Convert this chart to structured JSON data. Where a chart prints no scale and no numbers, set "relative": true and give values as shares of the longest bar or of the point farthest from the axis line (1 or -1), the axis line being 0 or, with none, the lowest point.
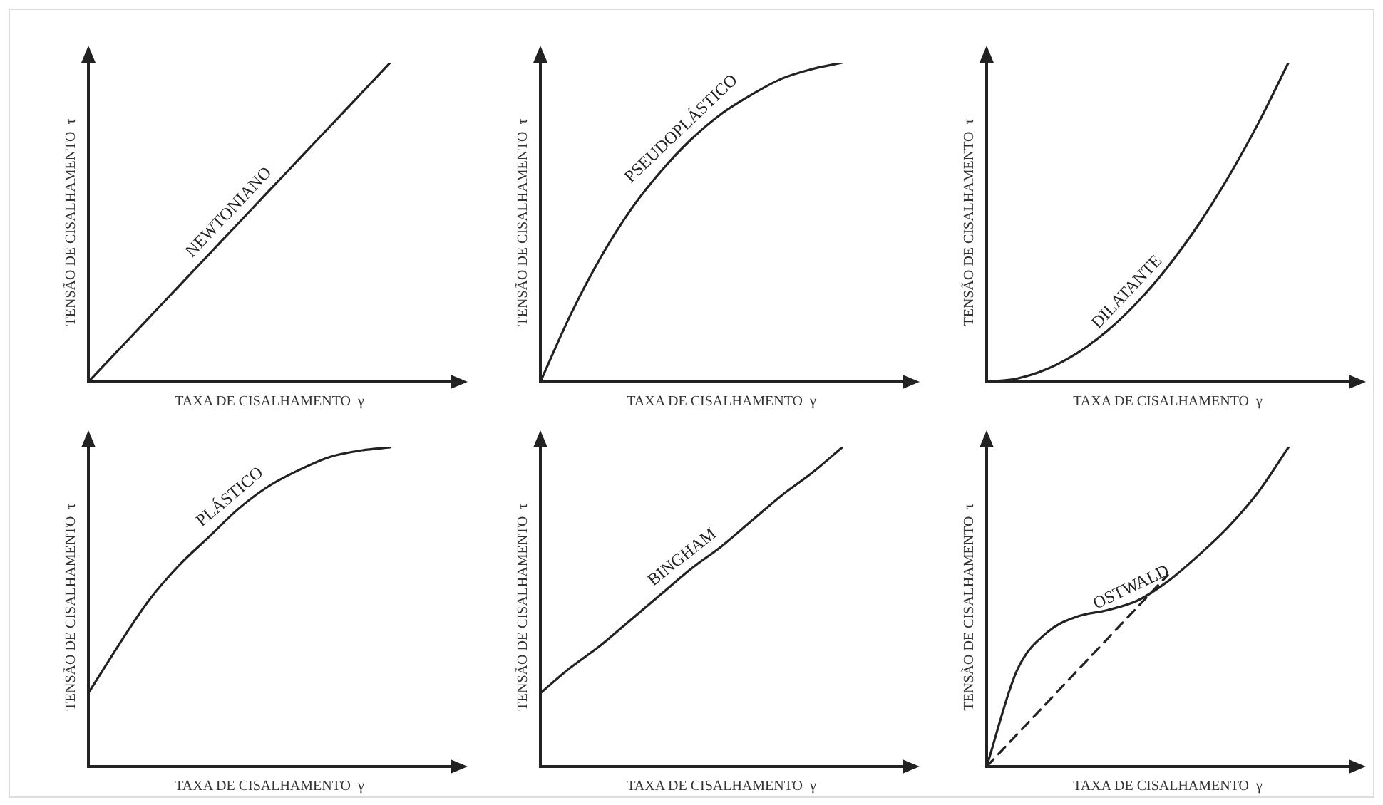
{
  "chart_data": [
    {
      "type": "line",
      "relative": true,
      "xlabel": "TAXA DE CISALHAMENTO  γ",
      "ylabel": "TENSÃO DE CISALHAMENTO  τ",
      "categories": [
        null,
        null,
        null,
        null,
        null,
        null,
        null,
        null,
        null,
        null,
        null,
        null,
        null
      ],
      "grid": false,
      "legend": false,
      "marker": "none",
      "series": [
        {
          "name": "NEWTONIANO",
          "color": "#222222",
          "line_style": "solid",
          "values": [
            0,
            0.1,
            0.2,
            0.3,
            0.4,
            0.5,
            0.6,
            0.7,
            0.8,
            0.9,
            1,
            null,
            null
          ]
        }
      ]
    },
    {
      "type": "line",
      "relative": true,
      "xlabel": "TAXA DE CISALHAMENTO  γ",
      "ylabel": "TENSÃO DE CISALHAMENTO  τ",
      "categories": [
        null,
        null,
        null,
        null,
        null,
        null,
        null,
        null,
        null,
        null,
        null,
        null,
        null
      ],
      "grid": false,
      "legend": false,
      "marker": "none",
      "series": [
        {
          "name": "PSEUDOPLÁSTICO",
          "color": "#222222",
          "line_style": "solid",
          "values": [
            0,
            0.21,
            0.39,
            0.54,
            0.66,
            0.76,
            0.84,
            0.9,
            0.95,
            0.98,
            1,
            null,
            null
          ]
        }
      ]
    },
    {
      "type": "line",
      "relative": true,
      "xlabel": "TAXA DE CISALHAMENTO  γ",
      "ylabel": "TENSÃO DE CISALHAMENTO  τ",
      "categories": [
        null,
        null,
        null,
        null,
        null,
        null,
        null,
        null,
        null,
        null,
        null,
        null,
        null
      ],
      "grid": false,
      "legend": false,
      "marker": "none",
      "series": [
        {
          "name": "DILATANTE",
          "color": "#222222",
          "line_style": "solid",
          "values": [
            0,
            0.01,
            0.04,
            0.09,
            0.16,
            0.25,
            0.36,
            0.49,
            0.64,
            0.81,
            1,
            null,
            null
          ]
        }
      ]
    },
    {
      "type": "line",
      "relative": true,
      "xlabel": "TAXA DE CISALHAMENTO  γ",
      "ylabel": "TENSÃO DE CISALHAMENTO  τ",
      "categories": [
        null,
        null,
        null,
        null,
        null,
        null,
        null,
        null,
        null,
        null,
        null,
        null,
        null
      ],
      "grid": false,
      "legend": false,
      "marker": "none",
      "series": [
        {
          "name": "PLÁSTICO",
          "color": "#222222",
          "line_style": "solid",
          "values": [
            0.23,
            0.38,
            0.52,
            0.63,
            0.72,
            0.81,
            0.88,
            0.93,
            0.97,
            0.99,
            1,
            null,
            null
          ]
        }
      ]
    },
    {
      "type": "line",
      "relative": true,
      "xlabel": "TAXA DE CISALHAMENTO  γ",
      "ylabel": "TENSÃO DE CISALHAMENTO  τ",
      "categories": [
        null,
        null,
        null,
        null,
        null,
        null,
        null,
        null,
        null,
        null,
        null,
        null,
        null
      ],
      "grid": false,
      "legend": false,
      "marker": "none",
      "series": [
        {
          "name": "BINGHAM",
          "color": "#222222",
          "line_style": "solid",
          "values": [
            0.23,
            0.31,
            0.38,
            0.46,
            0.54,
            0.62,
            0.69,
            0.77,
            0.85,
            0.92,
            1,
            null,
            null
          ]
        }
      ]
    },
    {
      "type": "line",
      "relative": true,
      "xlabel": "TAXA DE CISALHAMENTO  γ",
      "ylabel": "TENSÃO DE CISALHAMENTO  τ",
      "categories": [
        null,
        null,
        null,
        null,
        null,
        null,
        null,
        null,
        null,
        null,
        null,
        null,
        null
      ],
      "grid": false,
      "legend": false,
      "marker": "none",
      "series": [
        {
          "name": "OSTWALD",
          "color": "#222222",
          "line_style": "solid",
          "values": [
            0,
            0.3,
            0.42,
            0.47,
            0.49,
            0.52,
            0.58,
            0.66,
            0.75,
            0.86,
            1,
            null,
            null
          ]
        },
        {
          "color": "#222222",
          "line_style": "dashed",
          "values": [
            0,
            0.1,
            0.2,
            0.3,
            0.4,
            0.5,
            0.6,
            null,
            null,
            null,
            null,
            null,
            null
          ]
        }
      ]
    }
  ]
}
